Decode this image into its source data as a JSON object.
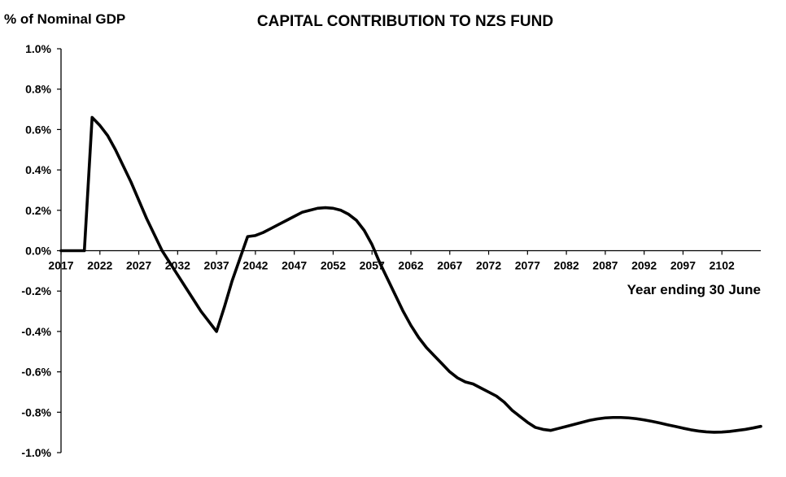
{
  "chart_data": {
    "type": "line",
    "title": "CAPITAL CONTRIBUTION TO NZS FUND",
    "ylabel": "% of Nominal GDP",
    "xlabel": "Year ending 30 June",
    "ylim": [
      -1.0,
      1.0
    ],
    "xlim": [
      2017,
      2107
    ],
    "y_ticks": [
      1.0,
      0.8,
      0.6,
      0.4,
      0.2,
      0.0,
      -0.2,
      -0.4,
      -0.6,
      -0.8,
      -1.0
    ],
    "y_tick_labels": [
      "1.0%",
      "0.8%",
      "0.6%",
      "0.4%",
      "0.2%",
      "0.0%",
      "-0.2%",
      "-0.4%",
      "-0.6%",
      "-0.8%",
      "-1.0%"
    ],
    "x_ticks": [
      2017,
      2022,
      2027,
      2032,
      2037,
      2042,
      2047,
      2052,
      2057,
      2062,
      2067,
      2072,
      2077,
      2082,
      2087,
      2092,
      2097,
      2102
    ],
    "x_tick_labels": [
      "2017",
      "2022",
      "2027",
      "2032",
      "2037",
      "2042",
      "2047",
      "2052",
      "2057",
      "2062",
      "2067",
      "2072",
      "2077",
      "2082",
      "2087",
      "2092",
      "2097",
      "2102"
    ],
    "grid": false,
    "legend": "none",
    "line_color": "#000000",
    "series": [
      {
        "x": [
          2017,
          2018,
          2019,
          2020,
          2021,
          2022,
          2023,
          2024,
          2025,
          2026,
          2027,
          2028,
          2029,
          2030,
          2031,
          2032,
          2033,
          2034,
          2035,
          2036,
          2037,
          2038,
          2039,
          2040,
          2041,
          2042,
          2043,
          2044,
          2045,
          2046,
          2047,
          2048,
          2049,
          2050,
          2051,
          2052,
          2053,
          2054,
          2055,
          2056,
          2057,
          2058,
          2059,
          2060,
          2061,
          2062,
          2063,
          2064,
          2065,
          2066,
          2067,
          2068,
          2069,
          2070,
          2071,
          2072,
          2073,
          2074,
          2075,
          2076,
          2077,
          2078,
          2079,
          2080,
          2081,
          2082,
          2083,
          2084,
          2085,
          2086,
          2087,
          2088,
          2089,
          2090,
          2091,
          2092,
          2093,
          2094,
          2095,
          2096,
          2097,
          2098,
          2099,
          2100,
          2101,
          2102,
          2103,
          2104,
          2105,
          2106,
          2107
        ],
        "values": [
          0.0,
          0.0,
          0.0,
          0.0,
          0.66,
          0.62,
          0.57,
          0.5,
          0.42,
          0.34,
          0.25,
          0.16,
          0.08,
          0.0,
          -0.06,
          -0.12,
          -0.18,
          -0.24,
          -0.3,
          -0.35,
          -0.4,
          -0.28,
          -0.15,
          -0.04,
          0.07,
          0.075,
          0.09,
          0.11,
          0.13,
          0.15,
          0.17,
          0.19,
          0.2,
          0.21,
          0.213,
          0.21,
          0.2,
          0.18,
          0.15,
          0.1,
          0.03,
          -0.06,
          -0.14,
          -0.22,
          -0.3,
          -0.37,
          -0.43,
          -0.48,
          -0.52,
          -0.56,
          -0.6,
          -0.63,
          -0.65,
          -0.66,
          -0.68,
          -0.7,
          -0.72,
          -0.75,
          -0.79,
          -0.82,
          -0.85,
          -0.875,
          -0.885,
          -0.89,
          -0.88,
          -0.87,
          -0.86,
          -0.85,
          -0.84,
          -0.833,
          -0.828,
          -0.826,
          -0.826,
          -0.828,
          -0.832,
          -0.838,
          -0.845,
          -0.853,
          -0.862,
          -0.87,
          -0.879,
          -0.887,
          -0.893,
          -0.897,
          -0.899,
          -0.898,
          -0.895,
          -0.89,
          -0.885,
          -0.878,
          -0.87
        ]
      }
    ]
  }
}
